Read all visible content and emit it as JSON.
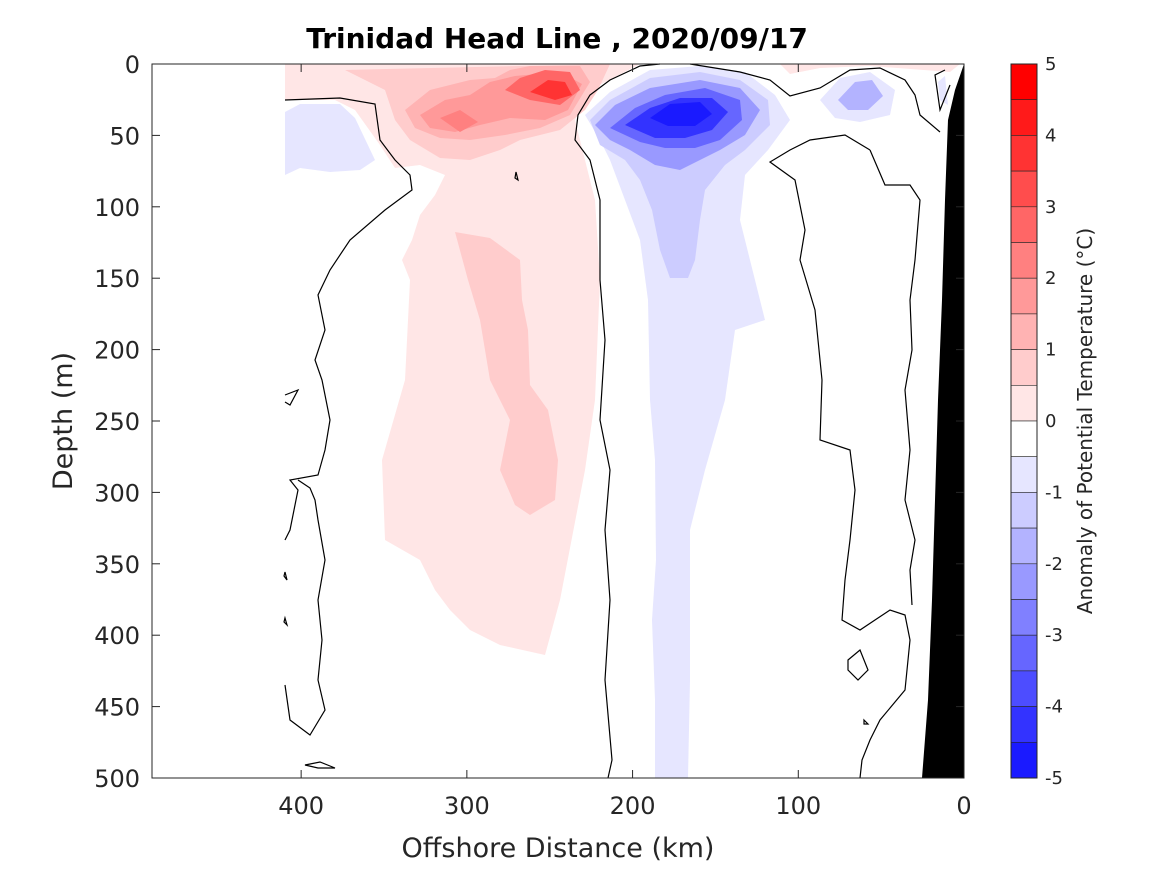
{
  "chart_data": {
    "type": "heatmap",
    "title": "Trinidad Head Line , 2020/09/17",
    "xlabel": "Offshore Distance (km)",
    "ylabel": "Depth (m)",
    "xlim": [
      490,
      0
    ],
    "ylim": [
      0,
      500
    ],
    "x_reversed": true,
    "y_reversed": true,
    "x_ticks": [
      "400",
      "300",
      "200",
      "100",
      "0"
    ],
    "y_ticks": [
      "0",
      "50",
      "100",
      "150",
      "200",
      "250",
      "300",
      "350",
      "400",
      "450",
      "500"
    ],
    "colorbar": {
      "label": "Anomaly of Potential Temperature (°C)",
      "range": [
        -5,
        5
      ],
      "step": 0.5,
      "ticks": [
        "5",
        "4",
        "3",
        "2",
        "1",
        "0",
        "-1",
        "-2",
        "-3",
        "-4",
        "-5"
      ],
      "colors": {
        "4.5": "#ff0000",
        "4": "#ff1a1a",
        "3.5": "#ff3333",
        "3": "#ff4d4d",
        "2.5": "#ff6666",
        "2": "#ff8080",
        "1.5": "#ff9999",
        "1": "#ffb3b3",
        "0.5": "#ffcccc",
        "0": "#ffe6e6",
        "-0.5": "#ffffff",
        "-1": "#e6e6ff",
        "-1.5": "#ccccff",
        "-2": "#b3b3ff",
        "-2.5": "#9999ff",
        "-3": "#8080ff",
        "-3.5": "#6666ff",
        "-4": "#4d4dff",
        "-4.5": "#3333ff",
        "-5": "#1a1aff"
      }
    },
    "features": [
      {
        "name": "warm core subsurface",
        "anomaly_max": 1.5,
        "x_range_km": [
          240,
          290
        ],
        "depth_range_m": [
          120,
          310
        ]
      },
      {
        "name": "warm surface patch",
        "anomaly_max": 3.5,
        "x_range_km": [
          220,
          330
        ],
        "depth_range_m": [
          0,
          70
        ]
      },
      {
        "name": "cold surface core",
        "anomaly_min": -4.5,
        "x_range_km": [
          140,
          210
        ],
        "depth_range_m": [
          10,
          70
        ]
      },
      {
        "name": "cold tongue",
        "anomaly_min": -1.0,
        "x_range_km": [
          170,
          200
        ],
        "depth_range_m": [
          60,
          500
        ]
      },
      {
        "name": "cold patch nearshore",
        "anomaly_min": -2.0,
        "x_range_km": [
          55,
          85
        ],
        "depth_range_m": [
          10,
          40
        ]
      },
      {
        "name": "bottom topography",
        "x_range_km": [
          0,
          28
        ],
        "depth_range_m": [
          0,
          500
        ]
      }
    ]
  }
}
